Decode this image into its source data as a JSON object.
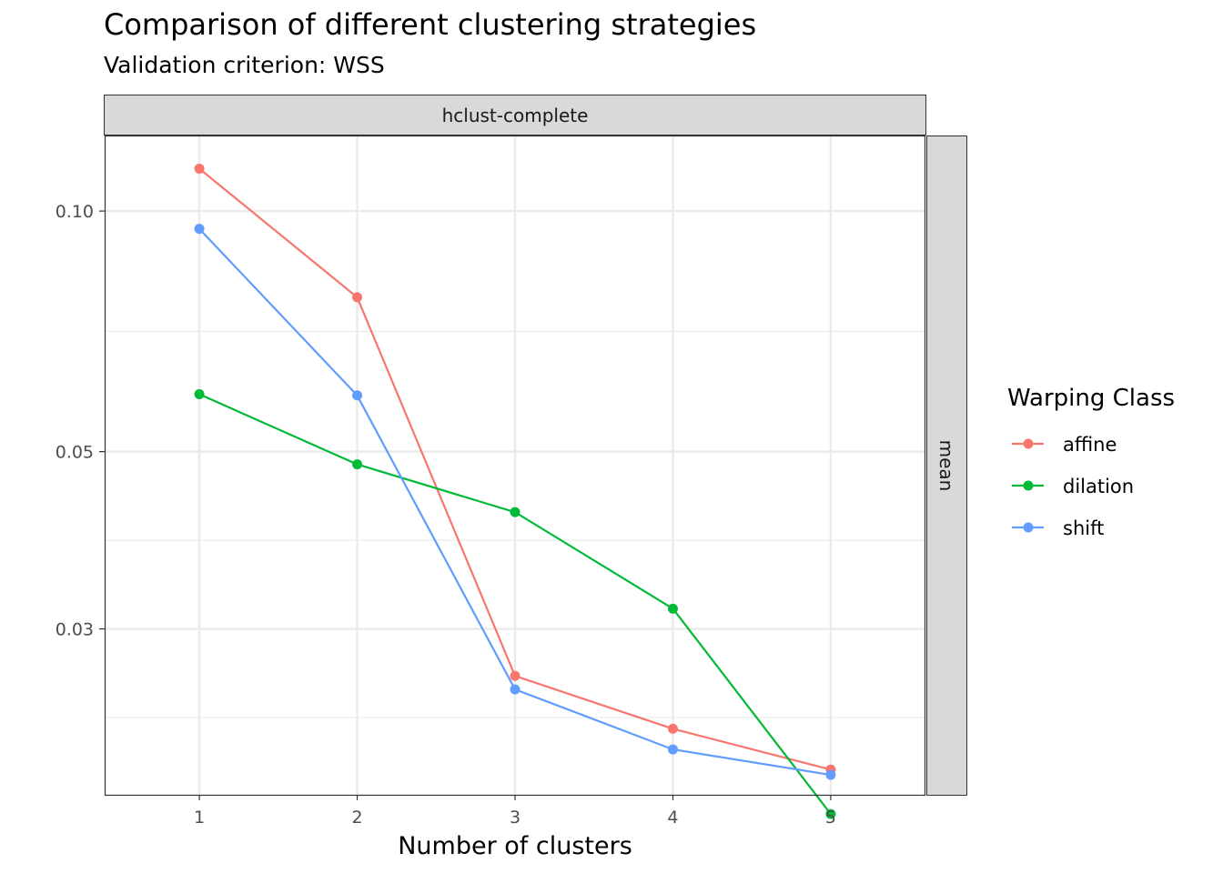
{
  "chart_data": {
    "type": "line",
    "title": "Comparison of different clustering strategies",
    "subtitle": "Validation criterion: WSS",
    "xlabel": "Number of clusters",
    "ylabel": "",
    "x": [
      1,
      2,
      3,
      4,
      5
    ],
    "xlim": [
      0.4,
      5.6
    ],
    "y_scale": "log10",
    "ylim": [
      0.0186,
      0.124
    ],
    "y_ticks": [
      0.03,
      0.05,
      0.1
    ],
    "y_tick_labels": [
      "0.03",
      "0.05",
      "0.10"
    ],
    "x_tick_labels": [
      "1",
      "2",
      "3",
      "4",
      "5"
    ],
    "grid": true,
    "facet_column_label": "hclust-complete",
    "facet_row_label": "mean",
    "legend": {
      "title": "Warping Class",
      "position": "right"
    },
    "series": [
      {
        "name": "affine",
        "color": "#F8766D",
        "values": [
          0.113,
          0.078,
          0.0262,
          0.0225,
          0.02
        ]
      },
      {
        "name": "dilation",
        "color": "#00BA38",
        "values": [
          0.059,
          0.0482,
          0.042,
          0.0318,
          0.0176
        ]
      },
      {
        "name": "shift",
        "color": "#619CFF",
        "values": [
          0.095,
          0.0588,
          0.0252,
          0.0212,
          0.0197
        ]
      }
    ]
  }
}
